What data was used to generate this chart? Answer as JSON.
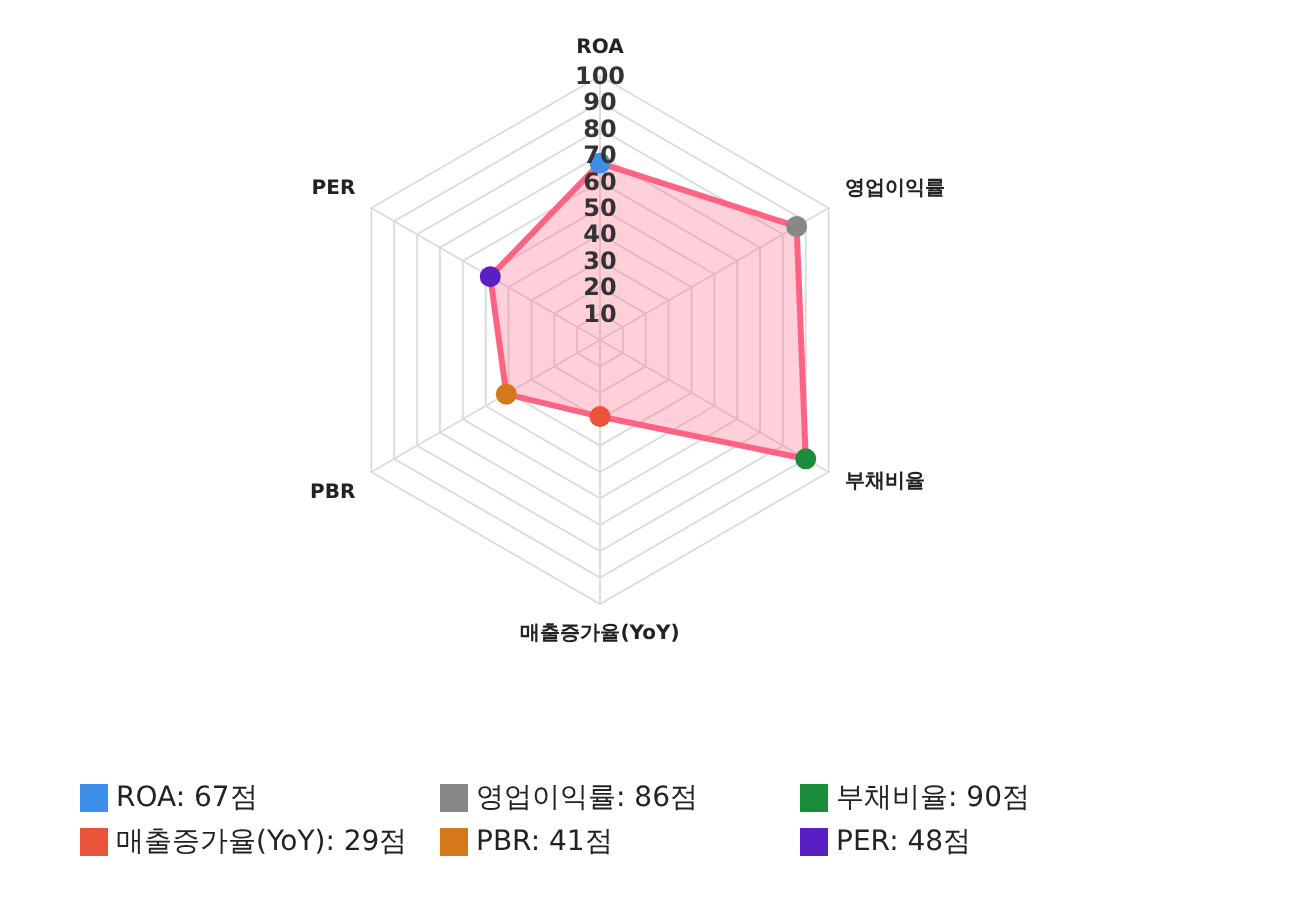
{
  "chart_data": {
    "type": "radar",
    "categories": [
      "ROA",
      "영업이익률",
      "부채비율",
      "매출증가율(YoY)",
      "PBR",
      "PER"
    ],
    "series": [
      {
        "color": "#ff6384",
        "values": [
          67,
          86,
          90,
          29,
          41,
          48
        ]
      }
    ],
    "colors": [
      "#3d8fe8",
      "#888888",
      "#1a8c3a",
      "#e8533a",
      "#d4781a",
      "#5a1fc4"
    ],
    "value_labels": [
      "ROA: 67점",
      "영업이익률: 86점",
      "부채비율: 90점",
      "매출증가율(YoY): 29점",
      "PBR: 41점",
      "PER: 48점"
    ],
    "ylim": [
      0,
      100
    ],
    "yticks": [
      10,
      20,
      30,
      40,
      50,
      60,
      70,
      80,
      90,
      100
    ],
    "grid": true,
    "marker": "circle"
  }
}
